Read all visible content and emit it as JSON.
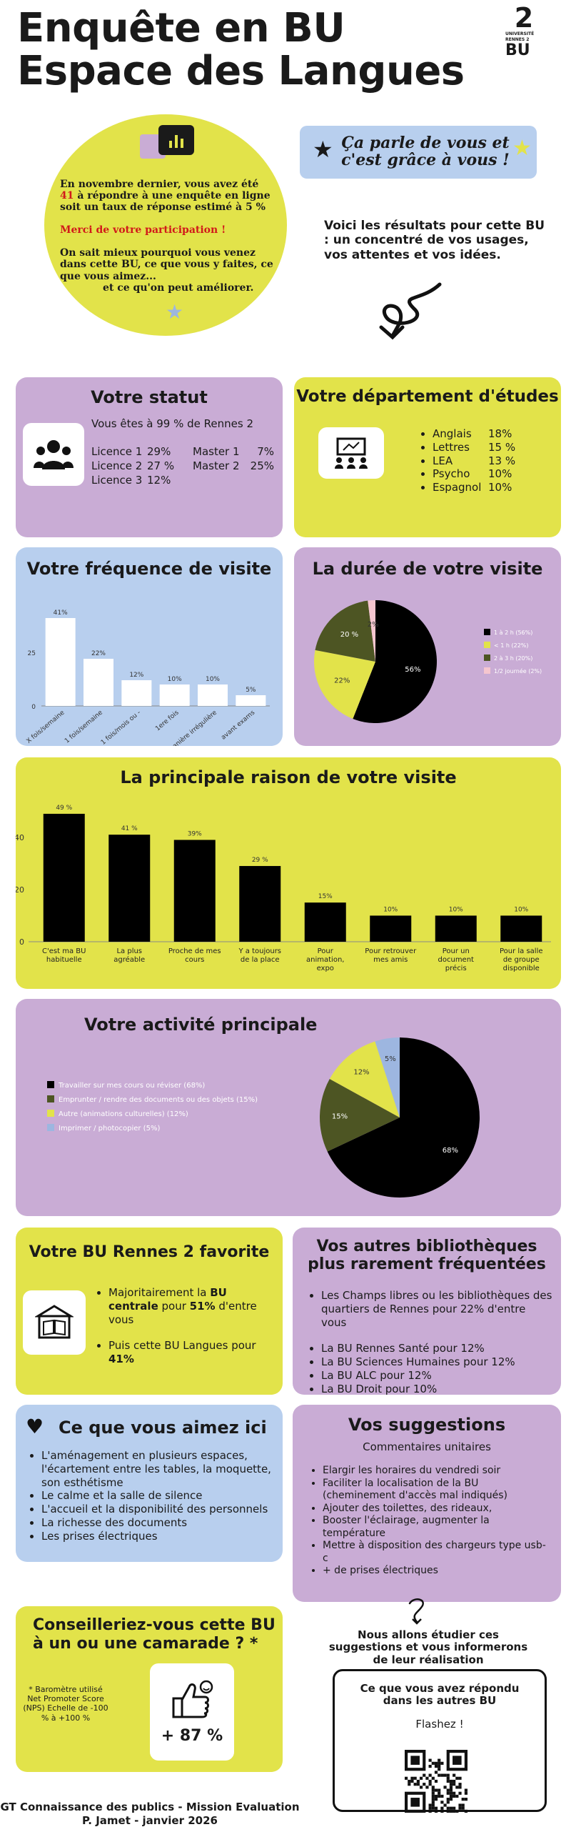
{
  "header": {
    "title_line1": "Enquête en BU",
    "title_line2": "Espace des Langues",
    "logo_text1": "UNIVERSITÉ",
    "logo_text2": "RENNES 2",
    "logo_bu": "BU"
  },
  "intro": {
    "line1a": "En novembre dernier, vous avez été ",
    "count": "41",
    "line1b": " à répondre à une enquête en ligne soit un taux de réponse estimé à 5 %",
    "thanks": "Merci de votre participation !",
    "para2": "On sait mieux pourquoi vous venez dans cette BU, ce que vous y faites, ce que vous aimez...",
    "para3": "et ce qu'on peut améliorer.",
    "banner_line1": "Ça parle de vous et",
    "banner_line2": "c'est grâce à vous !",
    "results": "Voici les résultats pour cette BU : un concentré de vos usages, vos attentes et vos idées."
  },
  "statut": {
    "title": "Votre statut",
    "subtitle": "Vous êtes à 99 % de Rennes 2",
    "rows": [
      {
        "l1": "Licence 1",
        "v1": "29%",
        "l2": "Master 1",
        "v2": "7%"
      },
      {
        "l1": "Licence 2",
        "v1": "27 %",
        "l2": "Master 2",
        "v2": "25%"
      },
      {
        "l1": "Licence 3",
        "v1": "12%",
        "l2": "",
        "v2": ""
      }
    ]
  },
  "departement": {
    "title": "Votre département d'études",
    "items": [
      {
        "label": "Anglais",
        "value": "18%"
      },
      {
        "label": "Lettres",
        "value": "15 %"
      },
      {
        "label": "LEA",
        "value": "13 %"
      },
      {
        "label": "Psycho",
        "value": "10%"
      },
      {
        "label": "Espagnol",
        "value": "10%"
      }
    ]
  },
  "frequence": {
    "title": "Votre fréquence de visite"
  },
  "duree": {
    "title": "La durée de votre visite"
  },
  "raison": {
    "title": "La principale raison de votre visite"
  },
  "activite": {
    "title": "Votre activité principale"
  },
  "chart_data": [
    {
      "id": "frequence",
      "type": "bar",
      "title": "Votre fréquence de visite",
      "categories": [
        "X fois/semaine",
        "1 fois/semaine",
        "1 fois/mois ou -",
        "1ere fois",
        "de manière irrégulière",
        "avant exams"
      ],
      "values": [
        41,
        22,
        12,
        10,
        10,
        5
      ],
      "labels": [
        "41%",
        "22%",
        "12%",
        "10%",
        "10%",
        "5%"
      ],
      "yticks": [
        "0",
        "25"
      ],
      "ylim": [
        0,
        50
      ]
    },
    {
      "id": "duree",
      "type": "pie",
      "title": "La durée de votre visite",
      "slices": [
        {
          "label": "1 à 2 h (56%)",
          "value": 56,
          "text": "56%",
          "color": "#000000"
        },
        {
          "label": "< 1 h (22%)",
          "value": 22,
          "text": "22%",
          "color": "#e2e34a"
        },
        {
          "label": "2 à 3 h (20%)",
          "value": 20,
          "text": "20 %",
          "color": "#4d5523"
        },
        {
          "label": "1/2 journée (2%)",
          "value": 2,
          "text": "2%",
          "color": "#f5c6cf"
        }
      ]
    },
    {
      "id": "raison",
      "type": "bar",
      "title": "La principale raison de votre visite",
      "categories": [
        "C'est ma BU habituelle",
        "La plus agréable",
        "Proche de mes cours",
        "Y a toujours de la place",
        "Pour animation, expo",
        "Pour retrouver mes amis",
        "Pour un document précis",
        "Pour la salle de groupe disponible"
      ],
      "values": [
        49,
        41,
        39,
        29,
        15,
        10,
        10,
        10
      ],
      "labels": [
        "49 %",
        "41 %",
        "39%",
        "29 %",
        "15%",
        "10%",
        "10%",
        "10%"
      ],
      "yticks": [
        "0",
        "20",
        "40"
      ],
      "ylim": [
        0,
        52
      ]
    },
    {
      "id": "activite",
      "type": "pie",
      "title": "Votre activité principale",
      "slices": [
        {
          "label": "Travailler sur mes cours ou réviser (68%)",
          "value": 68,
          "text": "68%",
          "color": "#000000"
        },
        {
          "label": "Emprunter / rendre des documents ou des objets (15%)",
          "value": 15,
          "text": "15%",
          "color": "#4d5523"
        },
        {
          "label": "Autre (animations culturelles) (12%)",
          "value": 12,
          "text": "12%",
          "color": "#e2e34a"
        },
        {
          "label": "Imprimer / photocopier (5%)",
          "value": 5,
          "text": "5%",
          "color": "#9db6e0"
        }
      ]
    }
  ],
  "favorite": {
    "title": "Votre BU Rennes 2 favorite",
    "item1a": "Majoritairement la ",
    "item1b": "BU centrale",
    "item1c": " pour ",
    "item1d": "51%",
    "item1e": " d'entre vous",
    "item2a": "Puis cette BU Langues pour ",
    "item2b": "41%"
  },
  "autres": {
    "title_line1": "Vos autres bibliothèques",
    "title_line2": "plus rarement fréquentées",
    "first": "Les Champs libres ou les bibliothèques des quartiers de Rennes pour 22% d'entre vous",
    "items": [
      "La BU Rennes Santé pour 12%",
      "La BU Sciences Humaines pour 12%",
      "La BU ALC pour 12%",
      "La BU Droit pour 10%"
    ]
  },
  "aimez": {
    "title": "Ce que vous aimez ici",
    "items": [
      "L'aménagement en plusieurs espaces, l'écartement entre les tables, la moquette, son esthétisme",
      "Le calme et la salle de silence",
      "L'accueil et la disponibilité des personnels",
      "La richesse des documents",
      "Les prises électriques"
    ]
  },
  "suggestions": {
    "title": "Vos suggestions",
    "subtitle": "Commentaires unitaires",
    "items": [
      "Elargir les horaires du vendredi soir",
      "Faciliter la localisation de la BU (cheminement d'accès mal indiqués)",
      "Ajouter des toilettes, des rideaux,",
      "Booster l'éclairage, augmenter la température",
      "Mettre à disposition des chargeurs type usb-c",
      "+ de prises électriques"
    ],
    "study_note": "Nous allons étudier ces suggestions et vous informerons de leur réalisation"
  },
  "conseil": {
    "title_line1": "Conseilleriez-vous cette BU",
    "title_line2": "à un ou une camarade ? *",
    "note": "* Baromètre utilisé Net Promoter Score (NPS) Echelle de -100 % à +100 %",
    "score": "+ 87 %"
  },
  "qr": {
    "title": "Ce que vous avez répondu dans les autres BU",
    "flash": "Flashez !"
  },
  "footer": {
    "line1": "GT Connaissance des publics - Mission Evaluation",
    "line2": "P. Jamet  - janvier 2026"
  }
}
